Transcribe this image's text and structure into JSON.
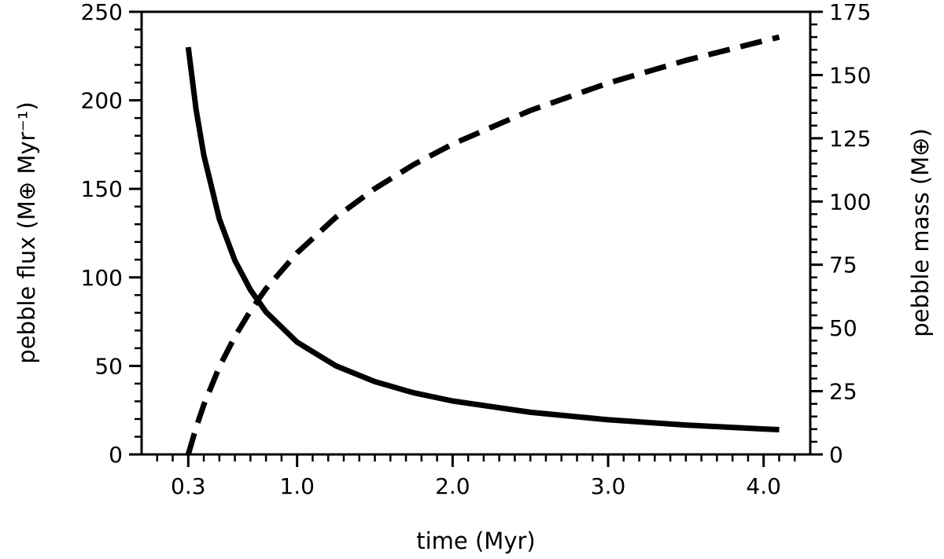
{
  "chart_data": {
    "type": "line",
    "title": "",
    "xlabel": "time (Myr)",
    "ylabel_left": "pebble flux (M⊕ Myr⁻¹)",
    "ylabel_right": "pebble mass (M⊕)",
    "xlim": [
      0,
      4.3
    ],
    "ylim_left": [
      0,
      250
    ],
    "ylim_right": [
      0,
      175
    ],
    "x_ticks": [
      0.3,
      1.0,
      2.0,
      3.0,
      4.0
    ],
    "x_tick_labels": [
      "0.3",
      "1.0",
      "2.0",
      "3.0",
      "4.0"
    ],
    "y_left_ticks": [
      "0",
      "50",
      "100",
      "150",
      "200",
      "250"
    ],
    "y_right_ticks": [
      "0",
      "25",
      "50",
      "75",
      "100",
      "125",
      "150",
      "175"
    ],
    "grid": false,
    "series": [
      {
        "axis": "left",
        "style": "solid",
        "color": "#000000",
        "x": [
          0.3,
          0.35,
          0.4,
          0.5,
          0.6,
          0.7,
          0.8,
          1.0,
          1.25,
          1.5,
          1.75,
          2.0,
          2.5,
          3.0,
          3.5,
          4.0,
          4.1
        ],
        "y": [
          230,
          195,
          169,
          133,
          109.5,
          92.9,
          80.5,
          63.4,
          50,
          41.1,
          34.8,
          30.2,
          23.8,
          19.6,
          16.6,
          14.4,
          14.0
        ]
      },
      {
        "axis": "right",
        "style": "dashed",
        "color": "#000000",
        "x": [
          0.3,
          0.35,
          0.4,
          0.5,
          0.6,
          0.7,
          0.8,
          1.0,
          1.25,
          1.5,
          1.75,
          2.0,
          2.5,
          3.0,
          3.5,
          4.0,
          4.1
        ],
        "y": [
          0,
          10.5,
          19.6,
          34.6,
          46.6,
          56.8,
          65.5,
          79.7,
          93.8,
          105.1,
          114.6,
          122.7,
          136,
          146.8,
          155.8,
          163.5,
          165
        ]
      }
    ]
  }
}
